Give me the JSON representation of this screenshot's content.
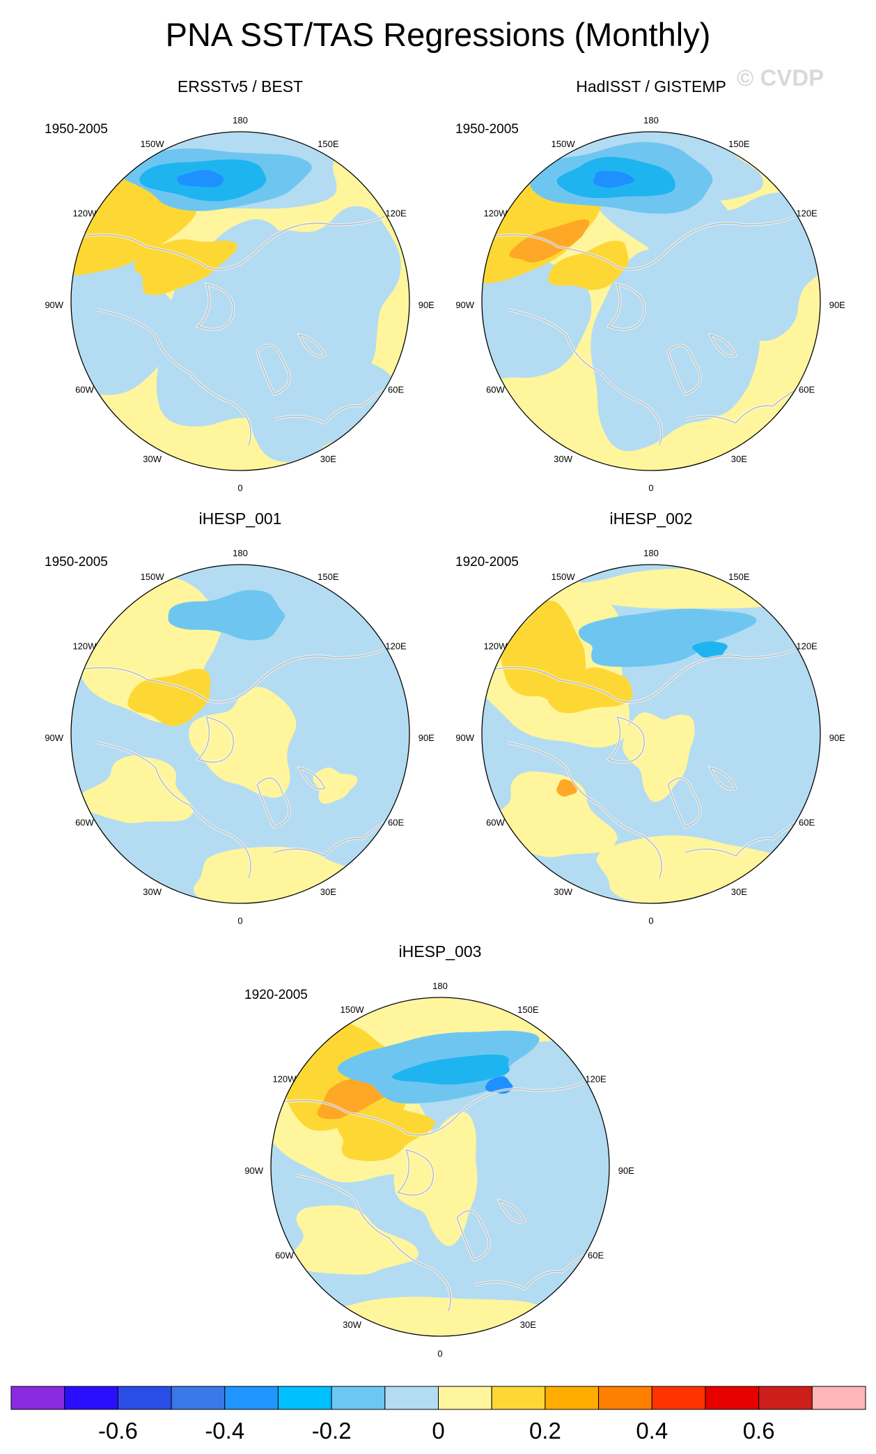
{
  "title": "PNA SST/TAS Regressions (Monthly)",
  "watermark": "© CVDP",
  "lon_labels": {
    "top": "180",
    "bottom": "0",
    "tr": "150E",
    "tl": "150W",
    "rt": "120E",
    "lt": "120W",
    "r": "90E",
    "l": "90W",
    "rb": "60E",
    "lb": "60W",
    "br": "30E",
    "bl": "30W"
  },
  "palette": {
    "ocean_pos_1": "#fff59d",
    "ocean_pos_2": "#fdd835",
    "ocean_pos_3": "#ffa726",
    "ocean_pos_4": "#ff8c1a",
    "neg_1": "#b3dcf2",
    "neg_2": "#6ec6f0",
    "neg_3": "#1eb4f0",
    "neg_4": "#1e90ff",
    "neg_5": "#2f55e6",
    "land_outline": "#555555",
    "white_mask": "#ffffff"
  },
  "panels": [
    {
      "title": "ERSSTv5 / BEST",
      "period": "1950-2005",
      "variant": 0
    },
    {
      "title": "HadISST / GISTEMP",
      "period": "1950-2005",
      "variant": 1
    },
    {
      "title": "iHESP_001",
      "period": "1950-2005",
      "variant": 2
    },
    {
      "title": "iHESP_002",
      "period": "1920-2005",
      "variant": 3
    },
    {
      "title": "iHESP_003",
      "period": "1920-2005",
      "variant": 4
    }
  ],
  "colorbar": {
    "colors": [
      "#8a2be2",
      "#2a0fff",
      "#2a4de8",
      "#3a78e8",
      "#1f96ff",
      "#00bfff",
      "#6cc7f3",
      "#b3dcf2",
      "#fff59d",
      "#fdd835",
      "#ffab00",
      "#ff7f00",
      "#ff3300",
      "#e60000",
      "#cc1f1a",
      "#ffb6b9"
    ],
    "labels": [
      {
        "text": "-0.6",
        "value": -0.6
      },
      {
        "text": "-0.4",
        "value": -0.4
      },
      {
        "text": "-0.2",
        "value": -0.2
      },
      {
        "text": "0",
        "value": 0.0
      },
      {
        "text": "0.2",
        "value": 0.2
      },
      {
        "text": "0.4",
        "value": 0.4
      },
      {
        "text": "0.6",
        "value": 0.6
      }
    ],
    "min": -0.8,
    "max": 0.8,
    "step": 0.1
  }
}
